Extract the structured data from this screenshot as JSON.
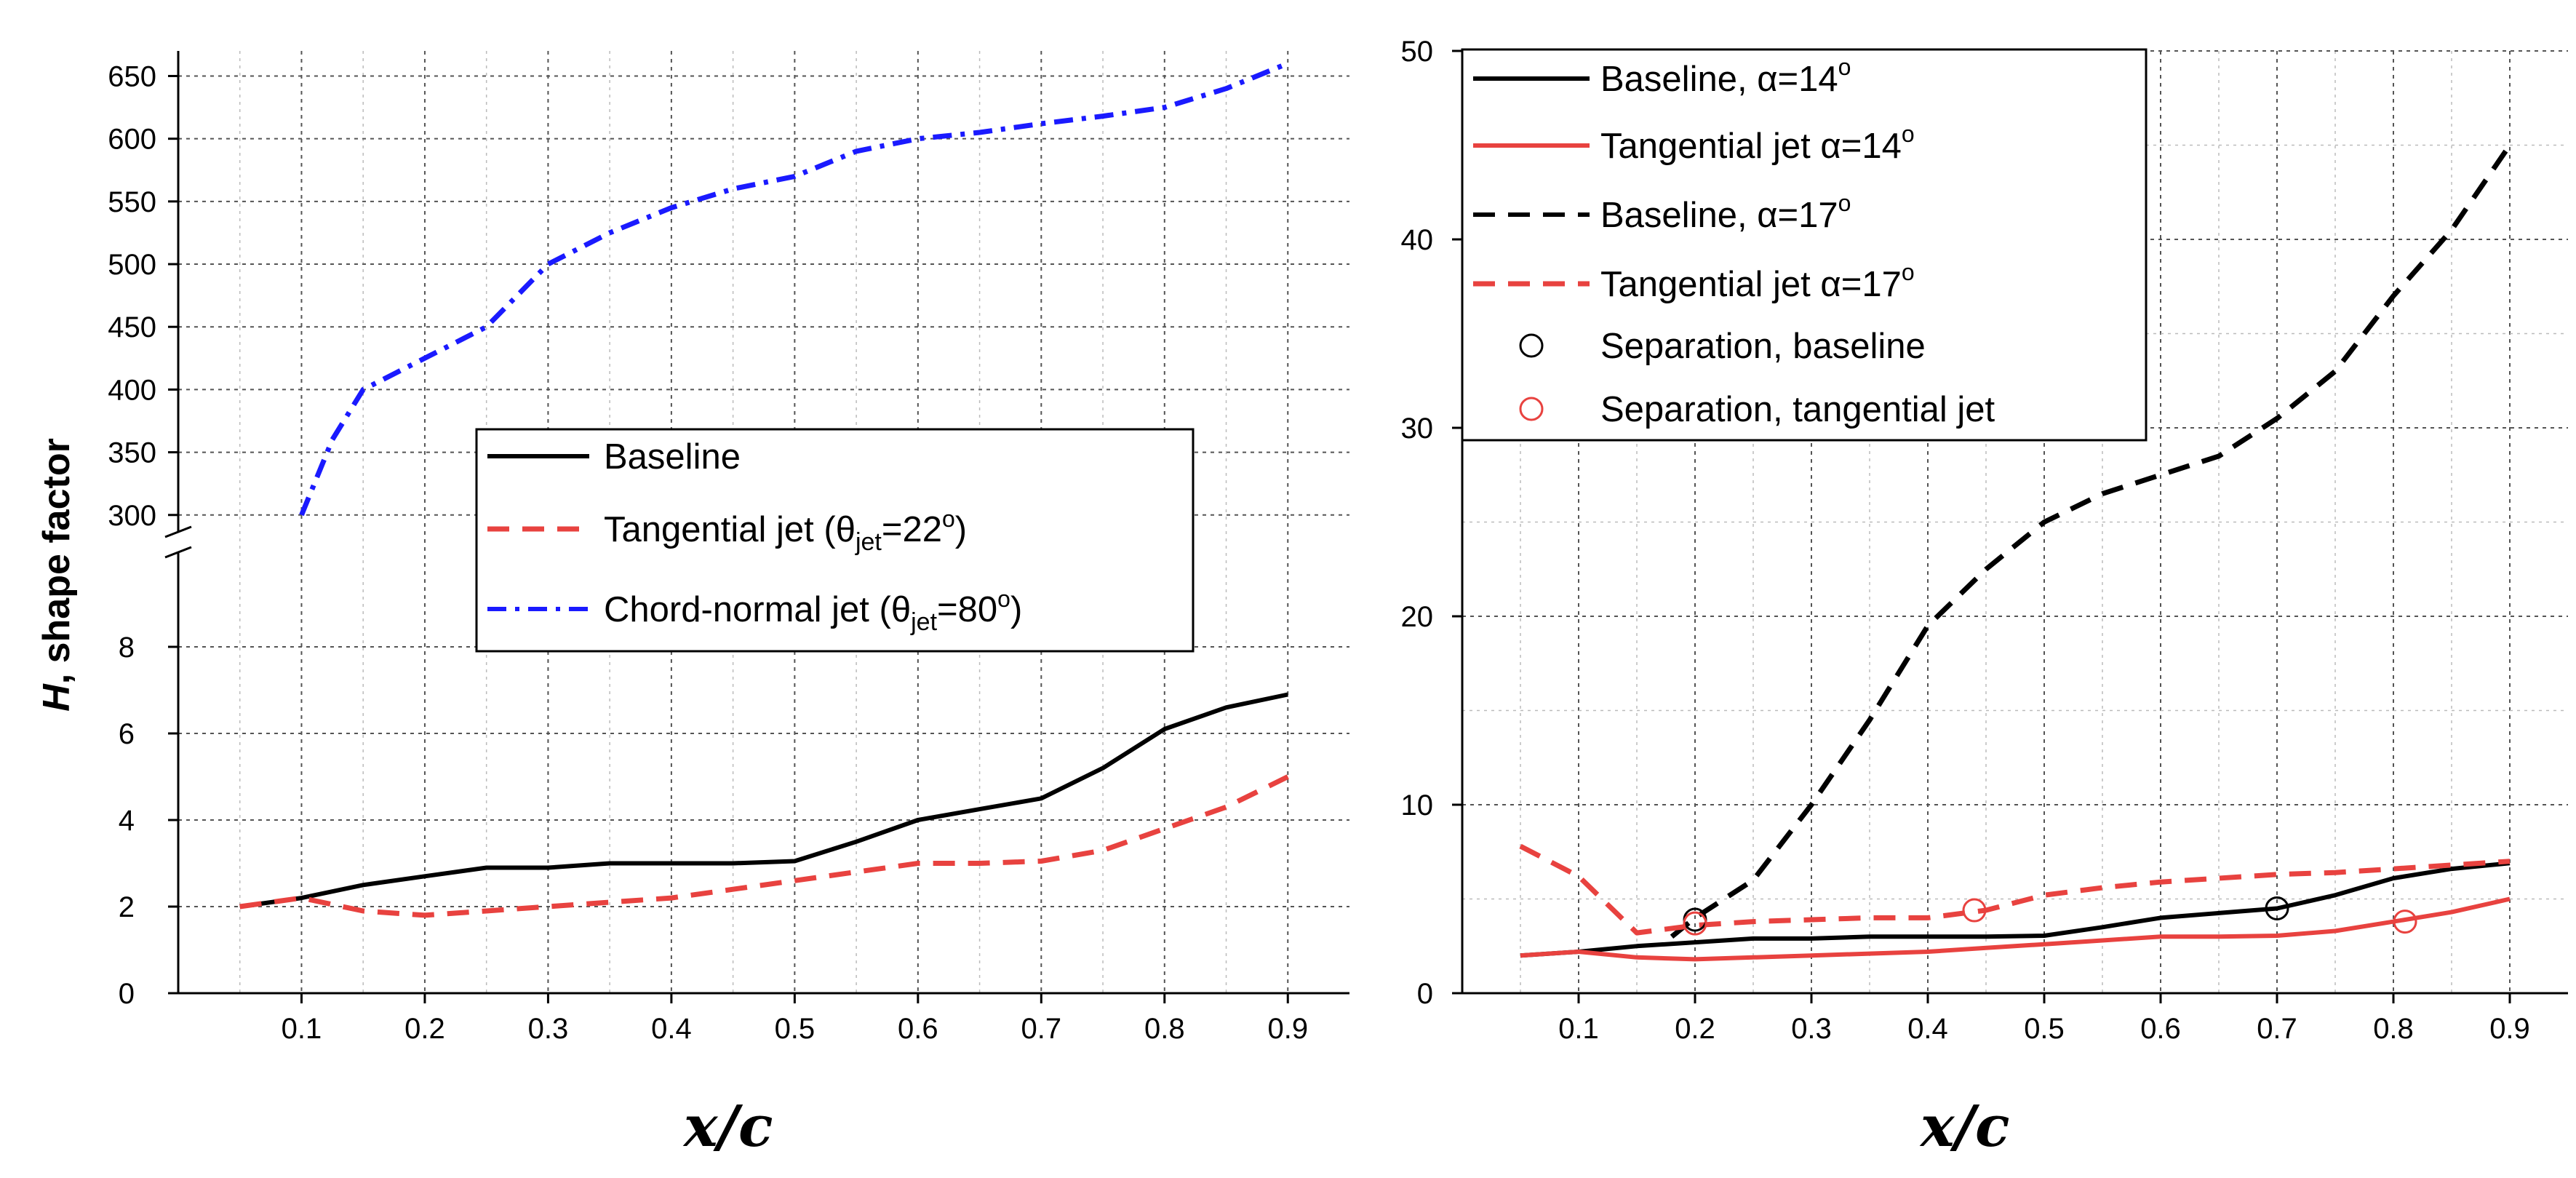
{
  "colors": {
    "black": "#000000",
    "red": "#e8423f",
    "blue": "#1a1aff"
  },
  "chart_data": [
    {
      "type": "line",
      "panel": "left",
      "xlabel": "x/c",
      "ylabel_italic": "H",
      "ylabel_rest": ", shape factor",
      "xlim": [
        0,
        0.95
      ],
      "x_ticks": [
        "0.1",
        "0.2",
        "0.3",
        "0.4",
        "0.5",
        "0.6",
        "0.7",
        "0.8",
        "0.9"
      ],
      "y_axis_break": true,
      "ylim_lower": [
        0,
        10
      ],
      "y_ticks_lower": [
        "0",
        "2",
        "4",
        "6",
        "8"
      ],
      "ylim_upper": [
        290,
        670
      ],
      "y_ticks_upper": [
        "300",
        "350",
        "400",
        "450",
        "500",
        "550",
        "600",
        "650"
      ],
      "grid": true,
      "legend_placement": "center",
      "series": [
        {
          "name": "Baseline",
          "label": "Baseline",
          "color": "#000000",
          "dash": "solid",
          "segment": "lower",
          "x": [
            0.05,
            0.1,
            0.15,
            0.2,
            0.25,
            0.3,
            0.35,
            0.4,
            0.45,
            0.5,
            0.55,
            0.6,
            0.65,
            0.7,
            0.75,
            0.8,
            0.85,
            0.9
          ],
          "y": [
            2.0,
            2.2,
            2.5,
            2.7,
            2.9,
            2.9,
            3.0,
            3.0,
            3.0,
            3.05,
            3.5,
            4.0,
            4.25,
            4.5,
            5.2,
            6.1,
            6.6,
            6.9
          ]
        },
        {
          "name": "Tangential jet (θjet=22°)",
          "label": "Tangential jet (θ",
          "label_sub": "jet",
          "label_tail": "=22",
          "label_sup": "o",
          "label_end": ")",
          "color": "#e8423f",
          "dash": "dashed",
          "segment": "lower",
          "x": [
            0.05,
            0.1,
            0.15,
            0.2,
            0.25,
            0.3,
            0.35,
            0.4,
            0.45,
            0.5,
            0.55,
            0.6,
            0.65,
            0.7,
            0.75,
            0.8,
            0.85,
            0.9
          ],
          "y": [
            2.0,
            2.2,
            1.9,
            1.8,
            1.9,
            2.0,
            2.1,
            2.2,
            2.4,
            2.6,
            2.8,
            3.0,
            3.0,
            3.05,
            3.3,
            3.8,
            4.3,
            5.0
          ]
        },
        {
          "name": "Chord-normal jet (θjet=80°)",
          "label": "Chord-normal jet (θ",
          "label_sub": "jet",
          "label_tail": "=80",
          "label_sup": "o",
          "label_end": ")",
          "color": "#1a1aff",
          "dash": "dashdot",
          "segment": "upper",
          "x": [
            0.1,
            0.125,
            0.15,
            0.2,
            0.25,
            0.3,
            0.35,
            0.4,
            0.45,
            0.5,
            0.55,
            0.6,
            0.65,
            0.7,
            0.75,
            0.8,
            0.85,
            0.9
          ],
          "y": [
            300,
            360,
            400,
            425,
            450,
            500,
            525,
            545,
            560,
            570,
            590,
            600,
            605,
            612,
            618,
            625,
            640,
            660
          ]
        }
      ]
    },
    {
      "type": "line",
      "panel": "right",
      "xlabel": "x/c",
      "xlim": [
        0,
        0.95
      ],
      "x_ticks": [
        "0.1",
        "0.2",
        "0.3",
        "0.4",
        "0.5",
        "0.6",
        "0.7",
        "0.8",
        "0.9"
      ],
      "ylim": [
        0,
        50
      ],
      "y_ticks": [
        "0",
        "10",
        "20",
        "30",
        "40",
        "50"
      ],
      "grid": true,
      "legend_placement": "top-left",
      "series": [
        {
          "name": "Baseline, α=14°",
          "label": "Baseline, α=14",
          "label_sup": "o",
          "color": "#000000",
          "dash": "solid",
          "x": [
            0.05,
            0.1,
            0.15,
            0.2,
            0.25,
            0.3,
            0.35,
            0.4,
            0.45,
            0.5,
            0.55,
            0.6,
            0.65,
            0.7,
            0.75,
            0.8,
            0.85,
            0.9
          ],
          "y": [
            2.0,
            2.2,
            2.5,
            2.7,
            2.9,
            2.9,
            3.0,
            3.0,
            3.0,
            3.05,
            3.5,
            4.0,
            4.25,
            4.5,
            5.2,
            6.1,
            6.6,
            6.9
          ]
        },
        {
          "name": "Tangential jet α=14°",
          "label": "Tangential jet α=14",
          "label_sup": "o",
          "color": "#e8423f",
          "dash": "solid",
          "x": [
            0.05,
            0.1,
            0.15,
            0.2,
            0.25,
            0.3,
            0.35,
            0.4,
            0.45,
            0.5,
            0.55,
            0.6,
            0.65,
            0.7,
            0.75,
            0.8,
            0.85,
            0.9
          ],
          "y": [
            2.0,
            2.2,
            1.9,
            1.8,
            1.9,
            2.0,
            2.1,
            2.2,
            2.4,
            2.6,
            2.8,
            3.0,
            3.0,
            3.05,
            3.3,
            3.8,
            4.3,
            5.0
          ]
        },
        {
          "name": "Baseline, α=17°",
          "label": "Baseline, α=17",
          "label_sup": "o",
          "color": "#000000",
          "dash": "dashed",
          "x": [
            0.18,
            0.2,
            0.25,
            0.3,
            0.35,
            0.4,
            0.45,
            0.5,
            0.55,
            0.6,
            0.65,
            0.7,
            0.75,
            0.8,
            0.85,
            0.9
          ],
          "y": [
            3.0,
            4.0,
            6.0,
            10.0,
            14.5,
            19.5,
            22.5,
            25.0,
            26.5,
            27.5,
            28.5,
            30.5,
            33.0,
            37.0,
            40.5,
            45.0
          ]
        },
        {
          "name": "Tangential jet α=17°",
          "label": "Tangential jet α=17",
          "label_sup": "o",
          "color": "#e8423f",
          "dash": "dashed",
          "x": [
            0.05,
            0.1,
            0.15,
            0.2,
            0.25,
            0.3,
            0.35,
            0.4,
            0.45,
            0.5,
            0.55,
            0.6,
            0.65,
            0.7,
            0.75,
            0.8,
            0.85,
            0.9
          ],
          "y": [
            7.8,
            6.2,
            3.2,
            3.6,
            3.8,
            3.9,
            4.0,
            4.0,
            4.4,
            5.2,
            5.6,
            5.9,
            6.1,
            6.3,
            6.4,
            6.6,
            6.8,
            7.0
          ]
        }
      ],
      "markers": [
        {
          "name": "Separation, baseline",
          "label": "Separation, baseline",
          "color": "#000000",
          "points": [
            {
              "x": 0.2,
              "y": 3.9
            },
            {
              "x": 0.7,
              "y": 4.5
            }
          ]
        },
        {
          "name": "Separation, tangential jet",
          "label": "Separation, tangential jet",
          "color": "#e8423f",
          "points": [
            {
              "x": 0.2,
              "y": 3.7
            },
            {
              "x": 0.44,
              "y": 4.4
            },
            {
              "x": 0.81,
              "y": 3.8
            }
          ]
        }
      ]
    }
  ]
}
